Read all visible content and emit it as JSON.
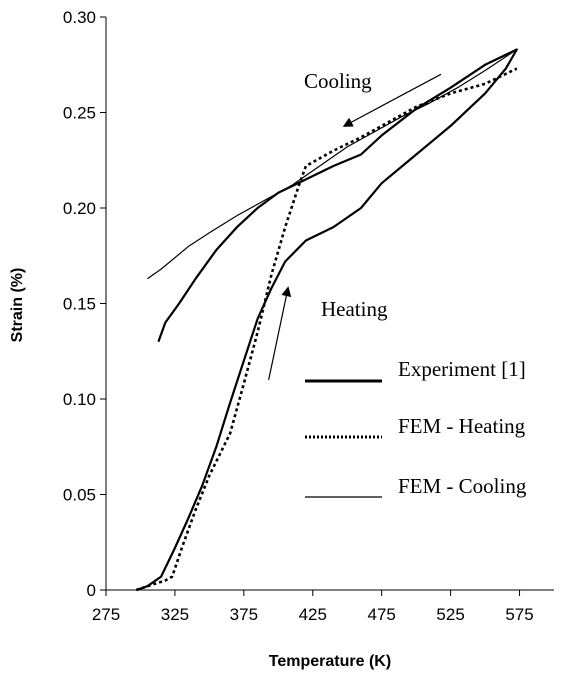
{
  "chart_data": {
    "type": "line",
    "xlabel": "Temperature (K)",
    "ylabel": "Strain (%)",
    "xlim": [
      275,
      600
    ],
    "ylim": [
      0,
      0.3
    ],
    "x_ticks": [
      {
        "value": 275,
        "label": "275"
      },
      {
        "value": 325,
        "label": "325"
      },
      {
        "value": 375,
        "label": "375"
      },
      {
        "value": 425,
        "label": "425"
      },
      {
        "value": 475,
        "label": "475"
      },
      {
        "value": 525,
        "label": "525"
      },
      {
        "value": 575,
        "label": "575"
      }
    ],
    "y_ticks": [
      {
        "value": 0,
        "label": "0"
      },
      {
        "value": 0.05,
        "label": "0.05"
      },
      {
        "value": 0.1,
        "label": "0.10"
      },
      {
        "value": 0.15,
        "label": "0.15"
      },
      {
        "value": 0.2,
        "label": "0.20"
      },
      {
        "value": 0.25,
        "label": "0.25"
      },
      {
        "value": 0.3,
        "label": "0.30"
      }
    ],
    "grid": false,
    "legend_position": "right",
    "series": [
      {
        "name": "Experiment [1]",
        "style": "solid-thick",
        "color": "#000000",
        "points": [
          [
            297,
            0
          ],
          [
            305,
            0.002
          ],
          [
            315,
            0.007
          ],
          [
            325,
            0.022
          ],
          [
            335,
            0.038
          ],
          [
            345,
            0.055
          ],
          [
            355,
            0.075
          ],
          [
            365,
            0.098
          ],
          [
            375,
            0.12
          ],
          [
            385,
            0.142
          ],
          [
            395,
            0.158
          ],
          [
            405,
            0.172
          ],
          [
            420,
            0.183
          ],
          [
            440,
            0.19
          ],
          [
            460,
            0.2
          ],
          [
            475,
            0.213
          ],
          [
            500,
            0.228
          ],
          [
            525,
            0.243
          ],
          [
            550,
            0.26
          ],
          [
            565,
            0.273
          ],
          [
            573,
            0.283
          ],
          [
            550,
            0.275
          ],
          [
            525,
            0.263
          ],
          [
            500,
            0.252
          ],
          [
            475,
            0.238
          ],
          [
            460,
            0.228
          ],
          [
            440,
            0.222
          ],
          [
            420,
            0.215
          ],
          [
            400,
            0.208
          ],
          [
            385,
            0.2
          ],
          [
            370,
            0.19
          ],
          [
            355,
            0.178
          ],
          [
            340,
            0.163
          ],
          [
            328,
            0.15
          ],
          [
            318,
            0.14
          ],
          [
            313,
            0.13
          ]
        ]
      },
      {
        "name": "FEM - Heating",
        "style": "dotted",
        "color": "#000000",
        "points": [
          [
            297,
            0
          ],
          [
            305,
            0.002
          ],
          [
            318,
            0.005
          ],
          [
            323,
            0.007
          ],
          [
            330,
            0.022
          ],
          [
            340,
            0.042
          ],
          [
            350,
            0.06
          ],
          [
            365,
            0.082
          ],
          [
            375,
            0.108
          ],
          [
            385,
            0.135
          ],
          [
            395,
            0.165
          ],
          [
            405,
            0.19
          ],
          [
            415,
            0.212
          ],
          [
            420,
            0.222
          ],
          [
            440,
            0.23
          ],
          [
            460,
            0.237
          ],
          [
            480,
            0.245
          ],
          [
            500,
            0.253
          ],
          [
            525,
            0.26
          ],
          [
            550,
            0.265
          ],
          [
            573,
            0.273
          ]
        ]
      },
      {
        "name": "FEM - Cooling",
        "style": "solid-thin",
        "color": "#000000",
        "points": [
          [
            573,
            0.283
          ],
          [
            550,
            0.272
          ],
          [
            530,
            0.263
          ],
          [
            510,
            0.255
          ],
          [
            490,
            0.248
          ],
          [
            470,
            0.24
          ],
          [
            450,
            0.232
          ],
          [
            430,
            0.222
          ],
          [
            410,
            0.212
          ],
          [
            390,
            0.204
          ],
          [
            370,
            0.196
          ],
          [
            350,
            0.187
          ],
          [
            335,
            0.18
          ],
          [
            325,
            0.174
          ],
          [
            315,
            0.168
          ],
          [
            305,
            0.163
          ]
        ]
      }
    ],
    "annotations": [
      {
        "text": "Cooling",
        "x": 465,
        "y": 0.275
      },
      {
        "text": "Heating",
        "x": 440,
        "y": 0.14
      }
    ],
    "arrows": [
      {
        "label": "Cooling",
        "from": [
          518,
          0.27
        ],
        "to": [
          448,
          0.243
        ]
      },
      {
        "label": "Heating",
        "from": [
          393,
          0.11
        ],
        "to": [
          407,
          0.158
        ]
      }
    ]
  }
}
